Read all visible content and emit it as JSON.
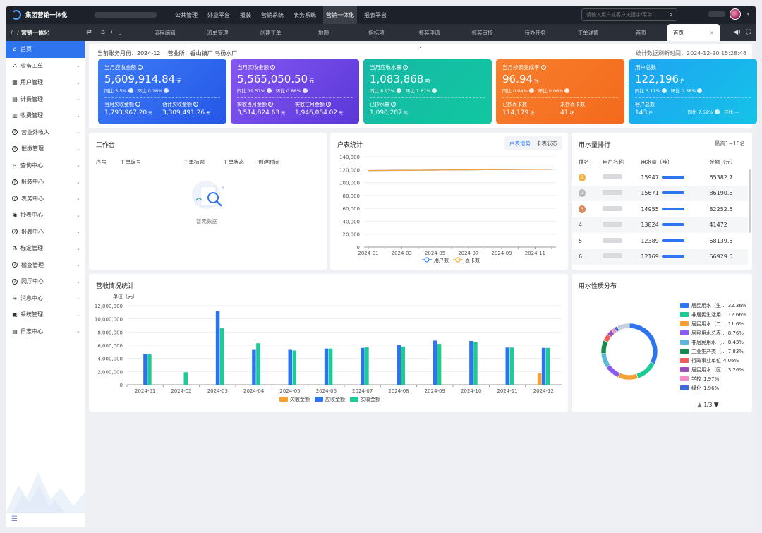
{
  "app": {
    "title": "集团营销一体化"
  },
  "top_nav": [
    "公共管理",
    "外业平台",
    "报装",
    "营销系统",
    "表务系统",
    "营销一体化",
    "报表平台"
  ],
  "top_nav_active": 5,
  "search": {
    "placeholder": "请输入用户或客户关键字/菜单..."
  },
  "tabbar": {
    "brand": "营销一体化",
    "tabs": [
      "流程编辑",
      "派单管理",
      "创建工单",
      "地图",
      "指标项",
      "报装申请",
      "报装审核",
      "待办任务",
      "工单详情",
      "首页"
    ],
    "active_tab": "首页"
  },
  "sidebar": {
    "items": [
      {
        "label": "首页",
        "icon": "bank-icon"
      },
      {
        "label": "业务工单",
        "icon": "org-icon"
      },
      {
        "label": "用户管理",
        "icon": "grid-icon"
      },
      {
        "label": "计费管理",
        "icon": "calc-icon"
      },
      {
        "label": "收费管理",
        "icon": "chart-icon"
      },
      {
        "label": "营业外收入",
        "icon": "help-circle-icon"
      },
      {
        "label": "催缴管理",
        "icon": "help-circle-icon"
      },
      {
        "label": "查询中心",
        "icon": "search-icon"
      },
      {
        "label": "报装中心",
        "icon": "help-circle-icon"
      },
      {
        "label": "表务中心",
        "icon": "help-circle-icon"
      },
      {
        "label": "抄表中心",
        "icon": "eye-icon"
      },
      {
        "label": "报表中心",
        "icon": "help-circle-icon"
      },
      {
        "label": "标定管理",
        "icon": "flask-icon"
      },
      {
        "label": "稽查管理",
        "icon": "help-circle-icon"
      },
      {
        "label": "网厅中心",
        "icon": "help-circle-icon"
      },
      {
        "label": "消息中心",
        "icon": "layers-icon"
      },
      {
        "label": "系统管理",
        "icon": "monitor-icon"
      },
      {
        "label": "日志中心",
        "icon": "file-icon"
      }
    ],
    "active": 0
  },
  "info": {
    "period_label": "当前账务月份：",
    "period": "2024-12",
    "office_label": "营业所：",
    "office_value": "香山镇厂  乌杨水厂",
    "refresh_label": "统计数据刷新时间：",
    "refresh_time": "2024-12-20 15:28:48"
  },
  "cards": [
    {
      "title": "当月应收金额",
      "value": "5,609,914.84",
      "unit": "元",
      "yoy": "同比 5.5%",
      "mom": "环比 0.16%",
      "a_label": "当月欠收金额",
      "a_value": "1,793,967.20",
      "a_unit": "元",
      "b_label": "合计欠收金额",
      "b_value": "3,309,491.26",
      "b_unit": "元",
      "gradient": "linear-gradient(135deg,#3d7bf7,#2457e6)"
    },
    {
      "title": "当月实收金额",
      "value": "5,565,050.50",
      "unit": "元",
      "yoy": "同比 19.57%",
      "mom": "环比 0.88%",
      "a_label": "实收当月金额",
      "a_value": "3,514,824.63",
      "a_unit": "元",
      "b_label": "实收往月金额",
      "b_value": "1,946,084.02",
      "b_unit": "元",
      "gradient": "linear-gradient(135deg,#8457f2,#5a37d8)"
    },
    {
      "title": "当月应收水量",
      "value": "1,083,868",
      "unit": "吨",
      "yoy": "同比 8.97%",
      "mom": "环比 1.81%",
      "a_label": "已抄水量",
      "a_value": "1,090,287",
      "a_unit": "吨",
      "b_label": "",
      "b_value": "",
      "b_unit": "",
      "gradient": "linear-gradient(135deg,#16b8a6,#11c7a0)"
    },
    {
      "title": "当月抄表完成率",
      "value": "96.94",
      "unit": "%",
      "yoy": "同比 0.04%",
      "mom": "环比 0.06%",
      "a_label": "已抄表卡数",
      "a_value": "114,179",
      "a_unit": "块",
      "b_label": "未抄表卡数",
      "b_value": "41",
      "b_unit": "块",
      "gradient": "linear-gradient(135deg,#f77f2d,#f46a1d)"
    },
    {
      "title": "用户总数",
      "value": "122,196",
      "unit": "户",
      "yoy": "同比 5.11%",
      "mom": "环比 0.38%",
      "a_label": "客户总数",
      "a_value": "143",
      "a_unit": "户",
      "b_label": "同比 7.52%",
      "b_value": "环比 ---",
      "b_unit": "",
      "gradient": "linear-gradient(135deg,#1fa3f2,#14c2e8)"
    }
  ],
  "workbench": {
    "title": "工作台",
    "columns": [
      "序号",
      "工单编号",
      "工单标题",
      "工单状态",
      "创建时间"
    ],
    "empty_text": "暂无数据"
  },
  "users_panel": {
    "title": "户表统计",
    "seg_tabs": [
      "户表增势",
      "卡表状态"
    ],
    "seg_active": 0
  },
  "rank_panel": {
    "title": "用水量排行",
    "subtitle": "最高1~10名",
    "columns": [
      "排名",
      "用户名称",
      "用水量（吨）",
      "金额（元）"
    ],
    "rows": [
      {
        "rank": "1",
        "volume": "15947",
        "amount": "65382.7"
      },
      {
        "rank": "2",
        "volume": "15671",
        "amount": "86190.5"
      },
      {
        "rank": "3",
        "volume": "14955",
        "amount": "82252.5"
      },
      {
        "rank": "4",
        "volume": "13824",
        "amount": "41472"
      },
      {
        "rank": "5",
        "volume": "12389",
        "amount": "68139.5"
      },
      {
        "rank": "6",
        "volume": "12169",
        "amount": "66929.5"
      }
    ]
  },
  "revenue_panel": {
    "title": "营收情况统计"
  },
  "nature_panel": {
    "title": "用水性质分布",
    "page": "1/3"
  },
  "chart_data": [
    {
      "type": "line",
      "x": [
        "2024-01",
        "2024-02",
        "2024-03",
        "2024-04",
        "2024-05",
        "2024-06",
        "2024-07",
        "2024-08",
        "2024-09",
        "2024-10",
        "2024-11",
        "2024-12"
      ],
      "x_ticks": [
        "2024-01",
        "2024-03",
        "2024-05",
        "2024-07",
        "2024-09",
        "2024-11"
      ],
      "series": [
        {
          "name": "用户数",
          "values": [
            118500,
            118700,
            118900,
            119100,
            119300,
            119500,
            119700,
            119900,
            120100,
            120300,
            120500,
            120700
          ],
          "color": "#3b82f6"
        },
        {
          "name": "表卡数",
          "values": [
            118500,
            118700,
            118900,
            119100,
            119300,
            119500,
            119700,
            119900,
            120100,
            120300,
            120500,
            120700
          ],
          "color": "#f5a43c"
        }
      ],
      "ylim": [
        0,
        140000
      ],
      "yticks": [
        "0",
        "20,000",
        "40,000",
        "60,000",
        "80,000",
        "100,000",
        "120,000",
        "140,000"
      ],
      "grid": true,
      "legend": "bottom"
    },
    {
      "type": "bar",
      "ylabel": "单位（元）",
      "categories": [
        "2024-01",
        "2024-02",
        "2024-03",
        "2024-04",
        "2024-05",
        "2024-06",
        "2024-07",
        "2024-08",
        "2024-09",
        "2024-10",
        "2024-11",
        "2024-12"
      ],
      "series": [
        {
          "name": "欠收金额",
          "values": [
            0,
            0,
            0,
            0,
            0,
            0,
            0,
            0,
            0,
            0,
            0,
            1800000
          ],
          "color": "#f7a135"
        },
        {
          "name": "应收金额",
          "values": [
            4700000,
            0,
            11200000,
            5300000,
            5300000,
            5500000,
            5600000,
            6100000,
            6700000,
            6650000,
            5650000,
            5600000
          ],
          "color": "#2f74ef"
        },
        {
          "name": "实收金额",
          "values": [
            4600000,
            1900000,
            8600000,
            6300000,
            5200000,
            5500000,
            5700000,
            5800000,
            6200000,
            6500000,
            5650000,
            5600000
          ],
          "color": "#1ccb96"
        }
      ],
      "ylim": [
        0,
        12000000
      ],
      "yticks": [
        "0",
        "2,000,000",
        "4,000,000",
        "6,000,000",
        "8,000,000",
        "10,000,000",
        "12,000,000"
      ],
      "grid": true,
      "legend": "bottom"
    },
    {
      "type": "pie",
      "donut": true,
      "labels": [
        "居民用水（生...",
        "非居民生活用...",
        "居民用水（二...",
        "居民用水总表...",
        "非居民用水（...",
        "工业生产类（...",
        "行政事业单位",
        "居民用水（区...",
        "学校",
        "绿化"
      ],
      "values": [
        32.36,
        12.66,
        11.6,
        8.76,
        8.43,
        7.83,
        4.06,
        3.26,
        1.97,
        1.96
      ],
      "value_labels": [
        "32.36%",
        "12.66%",
        "11.6%",
        "8.76%",
        "8.43%",
        "7.83%",
        "4.06%",
        "3.26%",
        "1.97%",
        "1.96%"
      ],
      "colors": [
        "#2f74ef",
        "#1ccb96",
        "#f7a135",
        "#8a5cf6",
        "#5cb8d6",
        "#168a4f",
        "#f05a5a",
        "#9b4db8",
        "#f28cc8",
        "#3e6bd8"
      ],
      "legend": "right"
    }
  ]
}
